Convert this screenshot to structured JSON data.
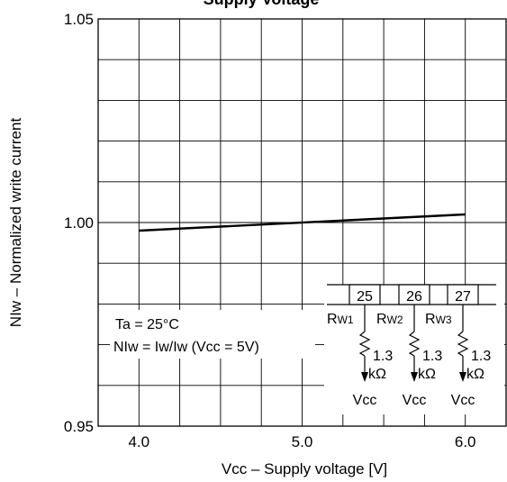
{
  "chart_data": {
    "type": "line",
    "title": "Supply Voltage",
    "xlabel": "Vcc – Supply voltage [V]",
    "ylabel": "NIw – Normalized write current",
    "xlim": [
      3.75,
      6.25
    ],
    "ylim": [
      0.95,
      1.05
    ],
    "x_ticks": [
      "4.0",
      "5.0",
      "6.0"
    ],
    "y_ticks": [
      "0.95",
      "1.00",
      "1.05"
    ],
    "grid": true,
    "series": [
      {
        "x": [
          4.0,
          6.0
        ],
        "y": [
          0.998,
          1.002
        ]
      }
    ],
    "annotations": {
      "condition_1": "Ta = 25°C",
      "condition_2_prefix": "NIw = Iw/Iw",
      "condition_2_suffix": " (Vcc = 5V)"
    },
    "circuit": {
      "pins": [
        "25",
        "26",
        "27"
      ],
      "resistor_names": [
        {
          "main": "R",
          "sub": "W1"
        },
        {
          "main": "R",
          "sub": "W2"
        },
        {
          "main": "R",
          "sub": "W3"
        }
      ],
      "resistor_value": "1.3",
      "resistor_unit": "kΩ",
      "supply_label": "Vcc"
    }
  }
}
